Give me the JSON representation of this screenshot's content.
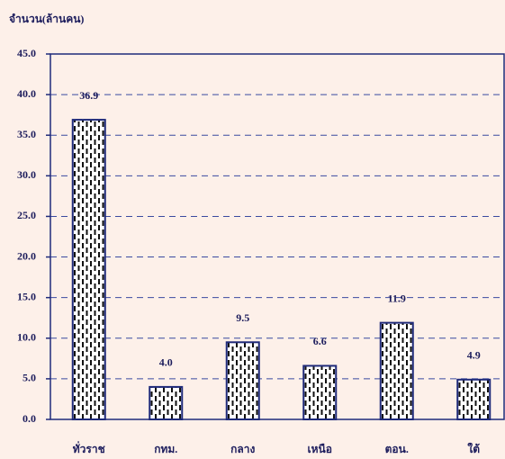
{
  "chart_data": {
    "type": "bar",
    "y_axis_label": "จำนวน(ล้านคน)",
    "categories": [
      "ทั่วราช",
      "กทม.",
      "กลาง",
      "เหนือ",
      "ตอน.",
      "ใต้"
    ],
    "values": [
      36.9,
      4.0,
      9.5,
      6.6,
      11.9,
      4.9
    ],
    "value_labels": [
      "36.9",
      "4.0",
      "9.5",
      "6.6",
      "11.9",
      "4.9"
    ],
    "color": "#1f2a7a",
    "ylim": [
      0,
      45
    ],
    "yticks": [
      {
        "value": 0,
        "label": "0.0"
      },
      {
        "value": 5,
        "label": "5.0"
      },
      {
        "value": 10,
        "label": "10.0"
      },
      {
        "value": 15,
        "label": "15.0"
      },
      {
        "value": 20,
        "label": "20.0"
      },
      {
        "value": 25,
        "label": "25.0"
      },
      {
        "value": 30,
        "label": "30.0"
      },
      {
        "value": 35,
        "label": "35.0"
      },
      {
        "value": 40,
        "label": "40.0"
      },
      {
        "value": 45,
        "label": "45.0"
      }
    ],
    "grid": true
  }
}
